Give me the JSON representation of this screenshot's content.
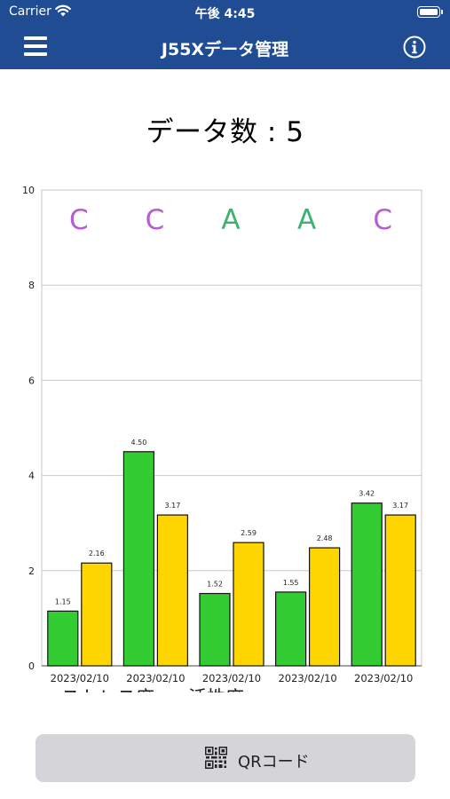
{
  "status_bar": {
    "carrier": "Carrier",
    "time": "午後 4:45"
  },
  "nav": {
    "title": "J55Xデータ管理",
    "menu_icon": "hamburger-menu-icon",
    "info_icon": "info-circle-icon"
  },
  "data_count_label": "データ数 : 5",
  "chart_data": {
    "type": "bar",
    "categories": [
      "2023/02/10",
      "2023/02/10",
      "2023/02/10",
      "2023/02/10",
      "2023/02/10"
    ],
    "series": [
      {
        "name": "ストレス度",
        "color": "#33cc33",
        "values": [
          1.15,
          4.5,
          1.52,
          1.55,
          3.42
        ],
        "labels": [
          "1.15",
          "4.50",
          "1.52",
          "1.55",
          "3.42"
        ]
      },
      {
        "name": "活性度",
        "color": "#ffd500",
        "values": [
          2.16,
          3.17,
          2.59,
          2.48,
          3.17
        ],
        "labels": [
          "2.16",
          "3.17",
          "2.59",
          "2.48",
          "3.17"
        ]
      }
    ],
    "grades": [
      {
        "label": "C",
        "color": "#b65cd6"
      },
      {
        "label": "C",
        "color": "#b65cd6"
      },
      {
        "label": "A",
        "color": "#3cb371"
      },
      {
        "label": "A",
        "color": "#3cb371"
      },
      {
        "label": "C",
        "color": "#b65cd6"
      }
    ],
    "ylim": [
      0,
      10
    ],
    "yticks": [
      "0",
      "2",
      "4",
      "6",
      "8",
      "10"
    ],
    "grid": true,
    "legend_position": "bottom-left"
  },
  "qr_button": {
    "label": "QRコード",
    "icon": "qr-code-icon"
  },
  "colors": {
    "nav_background": "#1f4c93",
    "button_background": "#d4d4d9"
  }
}
